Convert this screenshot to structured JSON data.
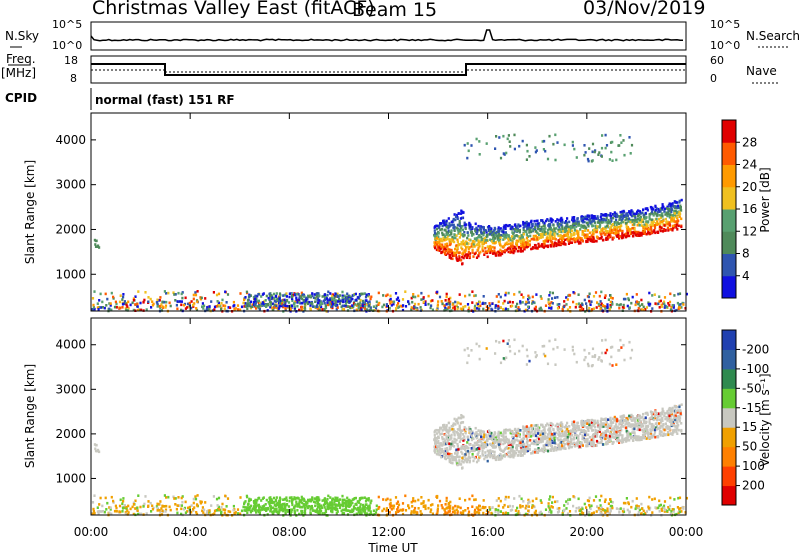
{
  "header": {
    "title": "Christmas Valley East (fitACF)",
    "beam": "Beam 15",
    "date": "03/Nov/2019"
  },
  "left_labels": {
    "nsky": "N.Sky",
    "freq": "Freq.",
    "mhz": "[MHz]",
    "cpid": "CPID"
  },
  "right_labels": {
    "nsearch": "N.Search",
    "nave": "Nave"
  },
  "noise_panel": {
    "left_ticks": [
      "10^5",
      "10^0"
    ],
    "right_ticks": [
      "10^5",
      "10^0"
    ]
  },
  "freq_panel": {
    "left_ticks": [
      "18",
      "8"
    ],
    "right_ticks": [
      "60",
      "0"
    ]
  },
  "cpid_text": "normal (fast) 151 RF",
  "colors": {
    "power_scale": [
      "#1010e0",
      "#2f55b0",
      "#4f8a5a",
      "#58a070",
      "#f0c020",
      "#ff9a00",
      "#ff5a00",
      "#e00000"
    ],
    "velocity_scale": [
      "#2040b0",
      "#3060a0",
      "#2f8a4f",
      "#66cc33",
      "#c8c8c0",
      "#f0a000",
      "#ff8000",
      "#ff4000",
      "#e00000"
    ],
    "ground": "#888888"
  },
  "chart_data": [
    {
      "type": "heatmap",
      "title": "",
      "ylabel": "Slant Range [km]",
      "ylim": [
        180,
        4600
      ],
      "yticks": [
        "1000",
        "2000",
        "3000",
        "4000"
      ],
      "xticks": [
        "00:00",
        "04:00",
        "08:00",
        "12:00",
        "16:00",
        "20:00",
        "00:00"
      ],
      "colorbar": {
        "label": "Power [dB]",
        "ticks": [
          "4",
          "8",
          "12",
          "16",
          "20",
          "24",
          "28"
        ],
        "range": [
          0,
          30
        ]
      },
      "scatter_bands": [
        {
          "name": "main",
          "t_start": 15.0,
          "t_end": 23.8,
          "lower_km": [
            1350,
            1450,
            1600,
            1700,
            1800,
            1900,
            2050
          ],
          "upper_km": [
            2200,
            2100,
            2250,
            2300,
            2400,
            2500,
            2700
          ]
        },
        {
          "name": "pre-gap",
          "t_start": 13.8,
          "t_end": 15.0,
          "lower_km": [
            1600,
            1200
          ],
          "upper_km": [
            2100,
            2500
          ]
        },
        {
          "name": "high",
          "t_start": 15.0,
          "t_end": 21.8,
          "lower_km": [
            3550
          ],
          "upper_km": [
            4150
          ]
        }
      ]
    },
    {
      "type": "heatmap",
      "title": "",
      "ylabel": "Slant Range [km]",
      "xlabel": "Time UT",
      "ylim": [
        180,
        4600
      ],
      "yticks": [
        "1000",
        "2000",
        "3000",
        "4000"
      ],
      "xticks": [
        "00:00",
        "04:00",
        "08:00",
        "12:00",
        "16:00",
        "20:00",
        "00:00"
      ],
      "colorbar": {
        "label": "Velocity [m s⁻¹]",
        "ticks": [
          "200",
          "100",
          "50",
          "15",
          "-15",
          "-50",
          "-100",
          "-200"
        ],
        "range": [
          -250,
          250
        ]
      }
    }
  ]
}
